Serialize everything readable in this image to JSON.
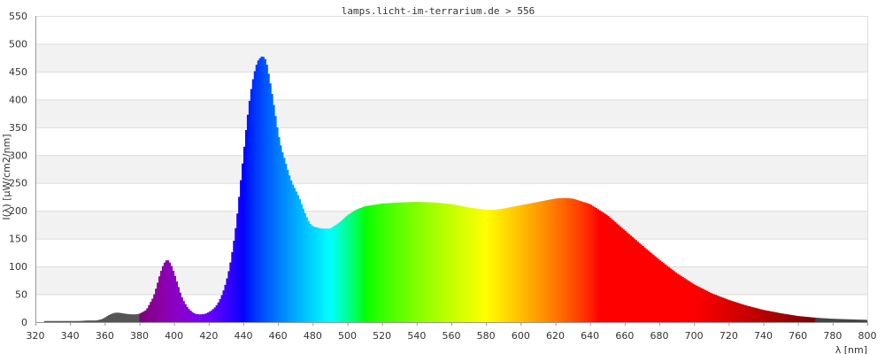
{
  "chart_data": {
    "type": "area",
    "title": "lamps.licht-im-terrarium.de > 556",
    "xlabel": "λ [nm]",
    "ylabel": "I(λ) [µW/cm2/nm]",
    "xlim": [
      320,
      800
    ],
    "ylim": [
      0,
      550
    ],
    "x_ticks": [
      320,
      340,
      360,
      380,
      400,
      420,
      440,
      460,
      480,
      500,
      520,
      540,
      560,
      580,
      600,
      620,
      640,
      660,
      680,
      700,
      720,
      740,
      760,
      780,
      800
    ],
    "y_ticks": [
      0,
      50,
      100,
      150,
      200,
      250,
      300,
      350,
      400,
      450,
      500,
      550
    ],
    "grid": "horizontal bands",
    "fill": "spectral colors by wavelength",
    "series": [
      {
        "x": [
          325,
          330,
          335,
          340,
          345,
          350,
          355,
          358,
          360,
          362,
          364,
          366,
          368,
          370,
          372,
          375,
          378,
          380,
          384,
          388,
          390,
          392,
          394,
          396,
          398,
          400,
          402,
          404,
          406,
          408,
          410,
          412,
          414,
          416,
          418,
          420,
          422,
          424,
          426,
          428,
          430,
          432,
          434,
          436,
          438,
          440,
          442,
          444,
          446,
          448,
          450,
          451,
          452,
          453,
          454,
          456,
          458,
          460,
          462,
          464,
          466,
          468,
          470,
          472,
          474,
          476,
          478,
          480,
          485,
          490,
          495,
          500,
          505,
          510,
          520,
          530,
          540,
          550,
          560,
          570,
          580,
          585,
          590,
          600,
          610,
          620,
          625,
          630,
          640,
          650,
          660,
          670,
          680,
          690,
          700,
          710,
          720,
          730,
          740,
          750,
          760,
          770,
          780,
          790,
          800
        ],
        "values": [
          2,
          2,
          2,
          2,
          2,
          3,
          3,
          5,
          8,
          12,
          15,
          17,
          17,
          16,
          15,
          14,
          14,
          15,
          22,
          45,
          65,
          88,
          105,
          113,
          105,
          88,
          68,
          48,
          35,
          25,
          19,
          15,
          14,
          14,
          15,
          18,
          22,
          28,
          38,
          52,
          72,
          98,
          135,
          180,
          240,
          300,
          360,
          410,
          445,
          468,
          476,
          478,
          475,
          470,
          455,
          420,
          380,
          340,
          310,
          290,
          268,
          250,
          238,
          225,
          208,
          192,
          178,
          172,
          168,
          168,
          178,
          192,
          202,
          208,
          213,
          215,
          216,
          215,
          212,
          206,
          202,
          202,
          204,
          210,
          216,
          222,
          223,
          222,
          212,
          192,
          165,
          138,
          112,
          88,
          68,
          52,
          40,
          30,
          22,
          16,
          11,
          8,
          6,
          5,
          4
        ]
      }
    ]
  }
}
